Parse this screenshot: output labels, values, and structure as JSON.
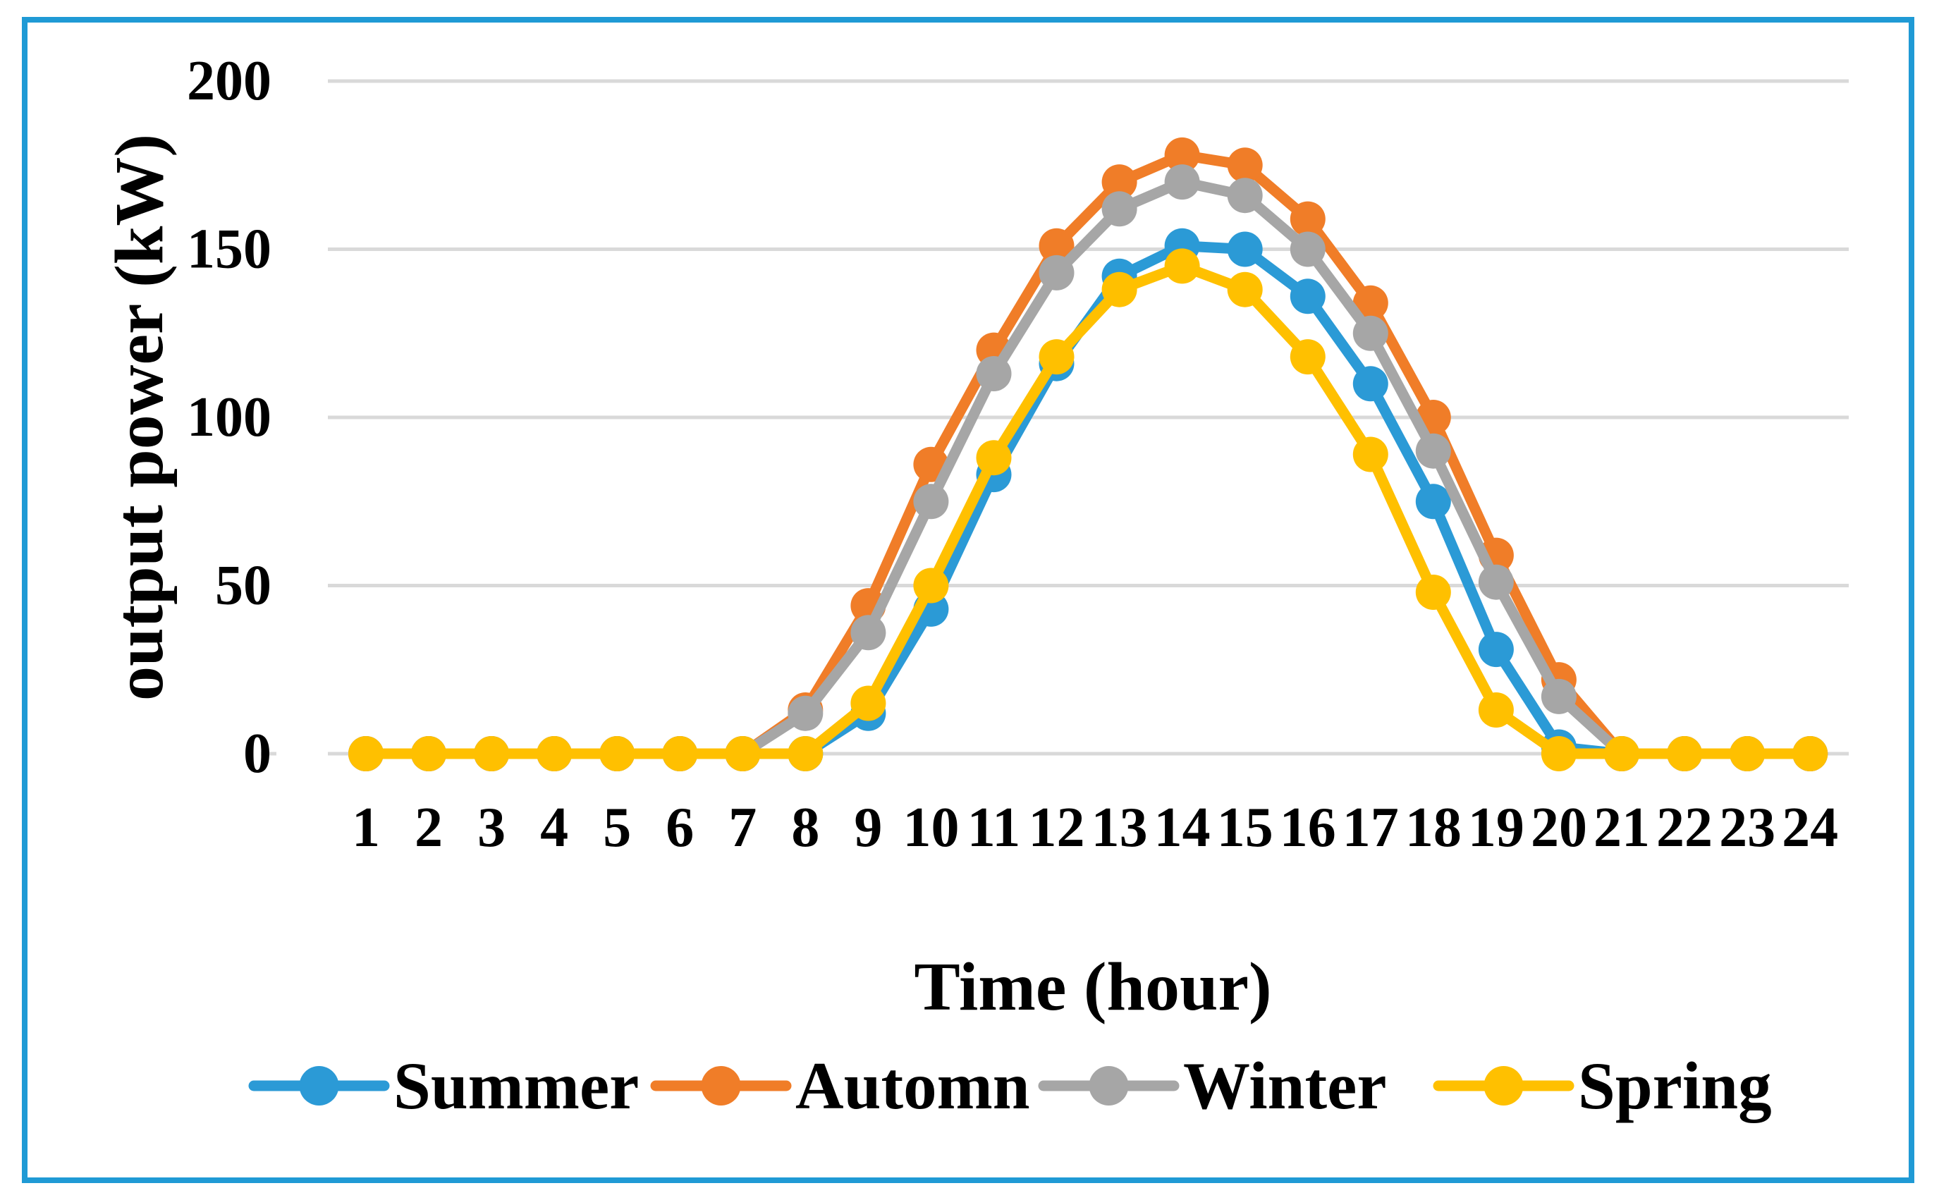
{
  "figure": {
    "border_color": "#1F9AD5",
    "background_color": "#FFFFFF",
    "gridline_color": "#D9D9D9",
    "text_color": "#000000"
  },
  "chart_data": {
    "type": "line",
    "title": "",
    "xlabel": "Time (hour)",
    "ylabel": "output power (kW)",
    "x": [
      1,
      2,
      3,
      4,
      5,
      6,
      7,
      8,
      9,
      10,
      11,
      12,
      13,
      14,
      15,
      16,
      17,
      18,
      19,
      20,
      21,
      22,
      23,
      24
    ],
    "xlim": [
      1,
      24
    ],
    "ylim": [
      0,
      200
    ],
    "yticks": [
      0,
      50,
      100,
      150,
      200
    ],
    "grid": "horizontal",
    "marker": "circle",
    "legend_position": "bottom",
    "series": [
      {
        "name": "Summer",
        "color": "#2B9AD6",
        "values": [
          0,
          0,
          0,
          0,
          0,
          0,
          0,
          0,
          12,
          43,
          83,
          116,
          142,
          151,
          150,
          136,
          110,
          75,
          31,
          2,
          0,
          0,
          0,
          0
        ]
      },
      {
        "name": "Automn",
        "color": "#F07D28",
        "values": [
          0,
          0,
          0,
          0,
          0,
          0,
          0,
          13,
          44,
          86,
          120,
          151,
          170,
          178,
          175,
          159,
          134,
          100,
          59,
          22,
          0,
          0,
          0,
          0
        ]
      },
      {
        "name": "Winter",
        "color": "#A6A6A6",
        "values": [
          0,
          0,
          0,
          0,
          0,
          0,
          0,
          12,
          36,
          75,
          113,
          143,
          162,
          170,
          166,
          150,
          125,
          90,
          51,
          17,
          0,
          0,
          0,
          0
        ]
      },
      {
        "name": "Spring",
        "color": "#FFC000",
        "values": [
          0,
          0,
          0,
          0,
          0,
          0,
          0,
          0,
          15,
          50,
          88,
          118,
          138,
          145,
          138,
          118,
          89,
          48,
          13,
          0,
          0,
          0,
          0,
          0
        ]
      }
    ]
  }
}
